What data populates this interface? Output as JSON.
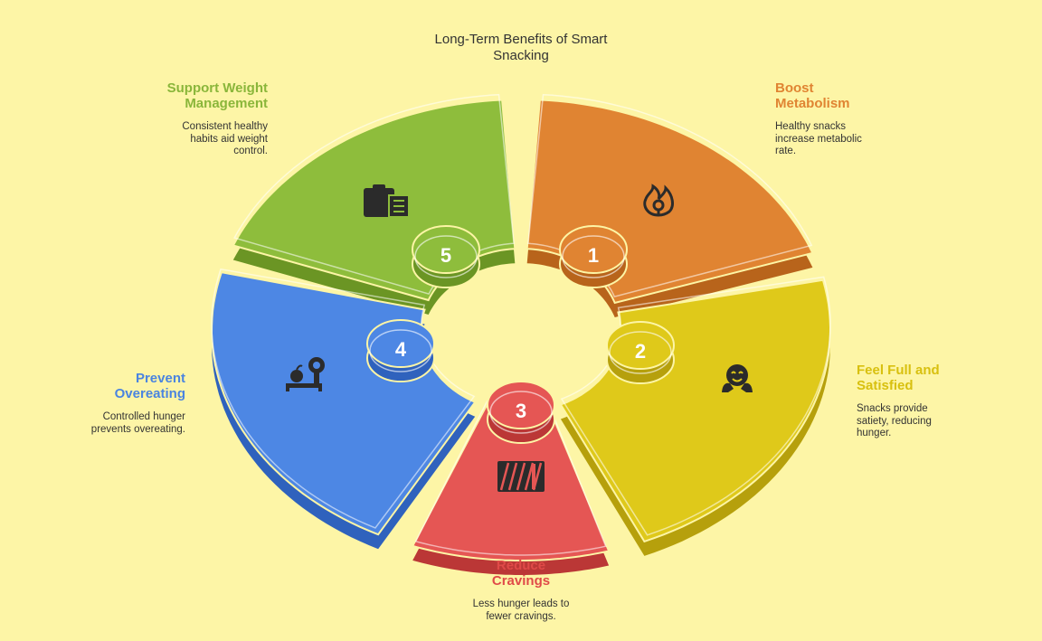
{
  "title": "Long-Term Benefits of Smart\nSnacking",
  "segments": [
    {
      "number": "1",
      "heading": "Boost\nMetabolism",
      "description": "Healthy snacks\nincrease metabolic\nrate.",
      "color": "#e08432",
      "color_dark": "#b8641b",
      "icon": "metabolism-flame-icon"
    },
    {
      "number": "2",
      "heading": "Feel Full and\nSatisfied",
      "description": "Snacks provide\nsatiety, reducing\nhunger.",
      "color": "#dfc91a",
      "color_dark": "#b6a00c",
      "icon": "satisfied-face-icon"
    },
    {
      "number": "3",
      "heading": "Reduce\nCravings",
      "description": "Less hunger leads to\nfewer cravings.",
      "color": "#e55654",
      "color_dark": "#bb3736",
      "icon": "cravings-bars-icon"
    },
    {
      "number": "4",
      "heading": "Prevent\nOvereating",
      "description": "Controlled hunger\nprevents overeating.",
      "color": "#4d87e4",
      "color_dark": "#2f62bd",
      "icon": "scale-apple-icon"
    },
    {
      "number": "5",
      "heading": "Support Weight\nManagement",
      "description": "Consistent healthy\nhabits aid weight\ncontrol.",
      "color": "#8ebd3c",
      "color_dark": "#6b9524",
      "icon": "clipboard-icon"
    }
  ]
}
